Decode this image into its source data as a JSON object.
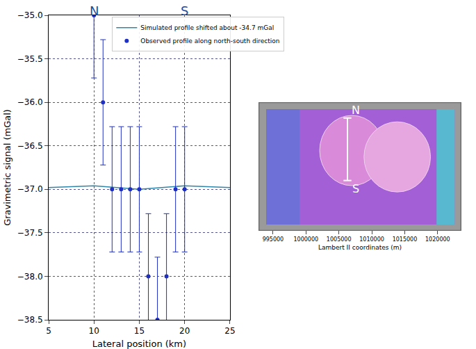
{
  "chart_data": [
    {
      "type": "scatter",
      "xlabel": "Lateral position (km)",
      "ylabel": "Gravimetric signal (mGal)",
      "xlim": [
        5,
        25
      ],
      "xticks": [
        5,
        10,
        15,
        20,
        25
      ],
      "ylim": [
        -38.5,
        -35
      ],
      "yticks": [
        {
          "value": -38.5,
          "label": "−38.5"
        },
        {
          "value": -38,
          "label": "−38.0"
        },
        {
          "value": -37.5,
          "label": "−37.5"
        },
        {
          "value": -37,
          "label": "−37.0"
        },
        {
          "value": -36.5,
          "label": "−36.5"
        },
        {
          "value": -36,
          "label": "−36.0"
        },
        {
          "value": -35.5,
          "label": "−35.5"
        },
        {
          "value": -35,
          "label": "−35.0"
        }
      ],
      "grid": true,
      "legend": "upper left",
      "annotations": [
        {
          "text": "N",
          "x": 10,
          "color": "#1f4e9c"
        },
        {
          "text": "S",
          "x": 20,
          "color": "#1f4e9c"
        }
      ],
      "series": [
        {
          "name": "Simulated profile shifted about -34.7 mGal",
          "type": "line",
          "color": "#2f86a8",
          "x": [
            5,
            7.5,
            10,
            12.5,
            15,
            17.5,
            20,
            22.5,
            25
          ],
          "values": [
            -36.98,
            -36.97,
            -36.96,
            -36.98,
            -37.0,
            -36.98,
            -36.96,
            -36.97,
            -36.98
          ]
        },
        {
          "name": "Observed profile along north-south direction",
          "type": "scatter",
          "marker": "circle",
          "color": "#1f2fc0",
          "x": [
            10,
            11,
            12,
            13,
            14,
            15,
            16,
            17,
            18,
            19,
            20
          ],
          "values": [
            -35,
            -36,
            -37,
            -37,
            -37,
            -37,
            -38,
            -38.5,
            -38,
            -37,
            -37
          ],
          "error": [
            0.72,
            0.72,
            0.72,
            0.72,
            0.72,
            0.72,
            0.72,
            0.72,
            0.72,
            0.72,
            0.72
          ]
        }
      ]
    },
    {
      "type": "map",
      "xlabel": "Lambert II coordinates (m)",
      "xlim": [
        992900,
        1023500
      ],
      "xticks": [
        995000,
        1000000,
        1005000,
        1010000,
        1015000,
        1020000
      ],
      "tick_labels": "x",
      "profile": {
        "x": 1006300,
        "labels": [
          "N",
          "S"
        ],
        "color": "#ffffff"
      }
    }
  ]
}
